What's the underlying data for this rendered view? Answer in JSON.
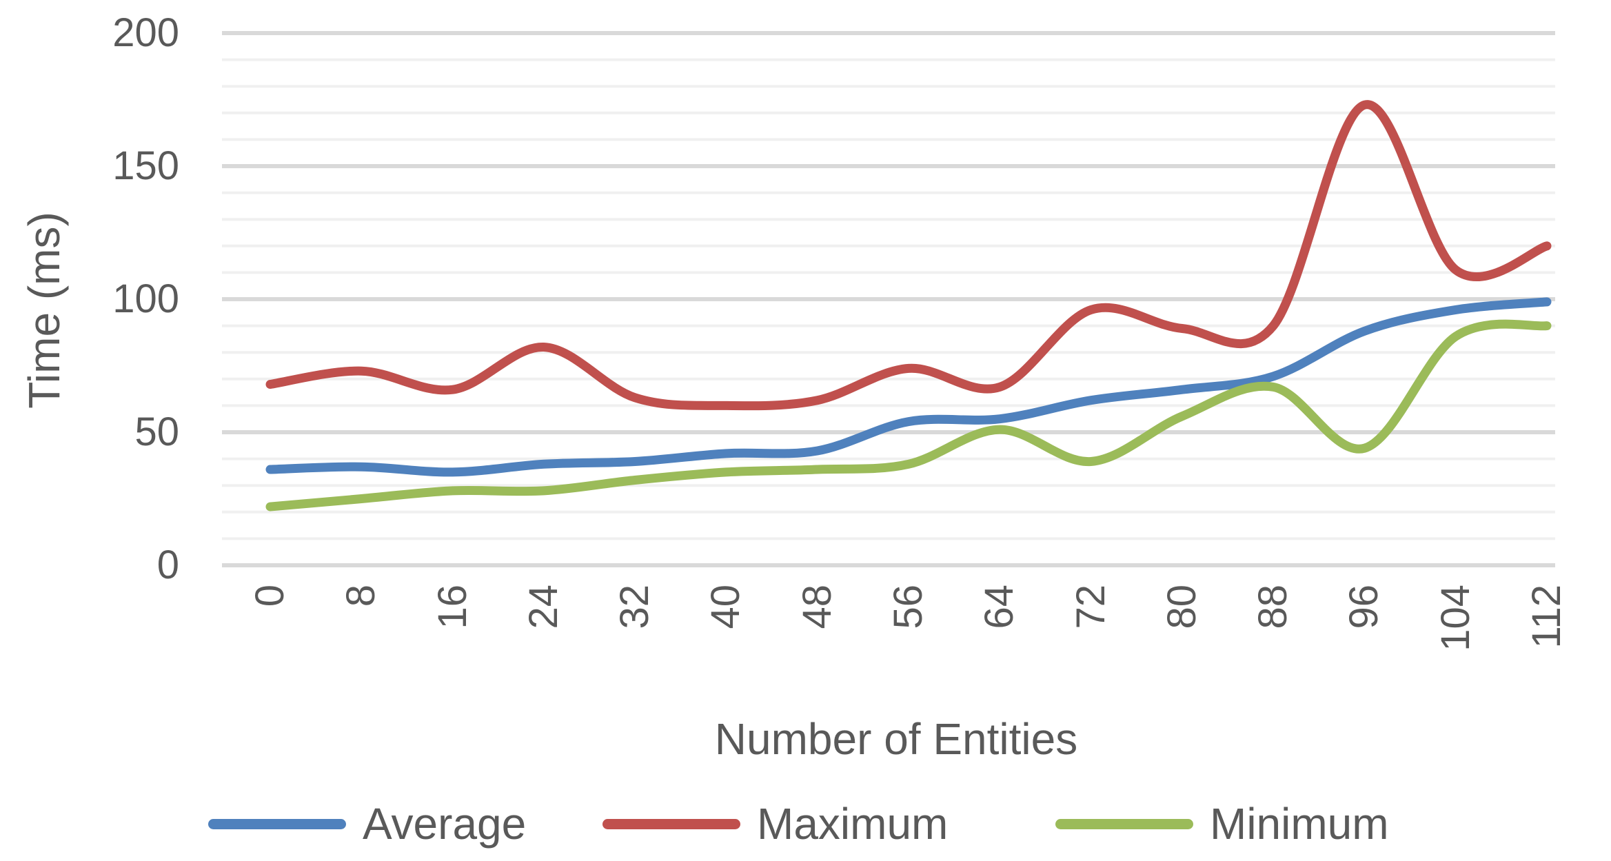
{
  "chart_data": {
    "type": "line",
    "title": "",
    "xlabel": "Number of Entities",
    "ylabel": "Time (ms)",
    "x": [
      0,
      8,
      16,
      24,
      32,
      40,
      48,
      56,
      64,
      72,
      80,
      88,
      96,
      104,
      112
    ],
    "ylim": [
      0,
      200
    ],
    "ytick_step": 50,
    "minor_grid_step": 10,
    "grid": "horizontal",
    "smooth": true,
    "legend_position": "bottom",
    "colors": {
      "major_grid": "#d9d9d9",
      "minor_grid": "#f0f0f0",
      "text": "#595959"
    },
    "series": [
      {
        "name": "Average",
        "color": "#4f81bd",
        "values": [
          36,
          37,
          35,
          38,
          39,
          42,
          43,
          54,
          55,
          62,
          66,
          71,
          88,
          96,
          99
        ]
      },
      {
        "name": "Maximum",
        "color": "#c0504d",
        "values": [
          68,
          73,
          66,
          82,
          63,
          60,
          62,
          74,
          67,
          96,
          89,
          90,
          173,
          111,
          120
        ]
      },
      {
        "name": "Minimum",
        "color": "#9bbb59",
        "values": [
          22,
          25,
          28,
          28,
          32,
          35,
          36,
          38,
          51,
          39,
          56,
          67,
          44,
          86,
          90
        ]
      }
    ]
  }
}
